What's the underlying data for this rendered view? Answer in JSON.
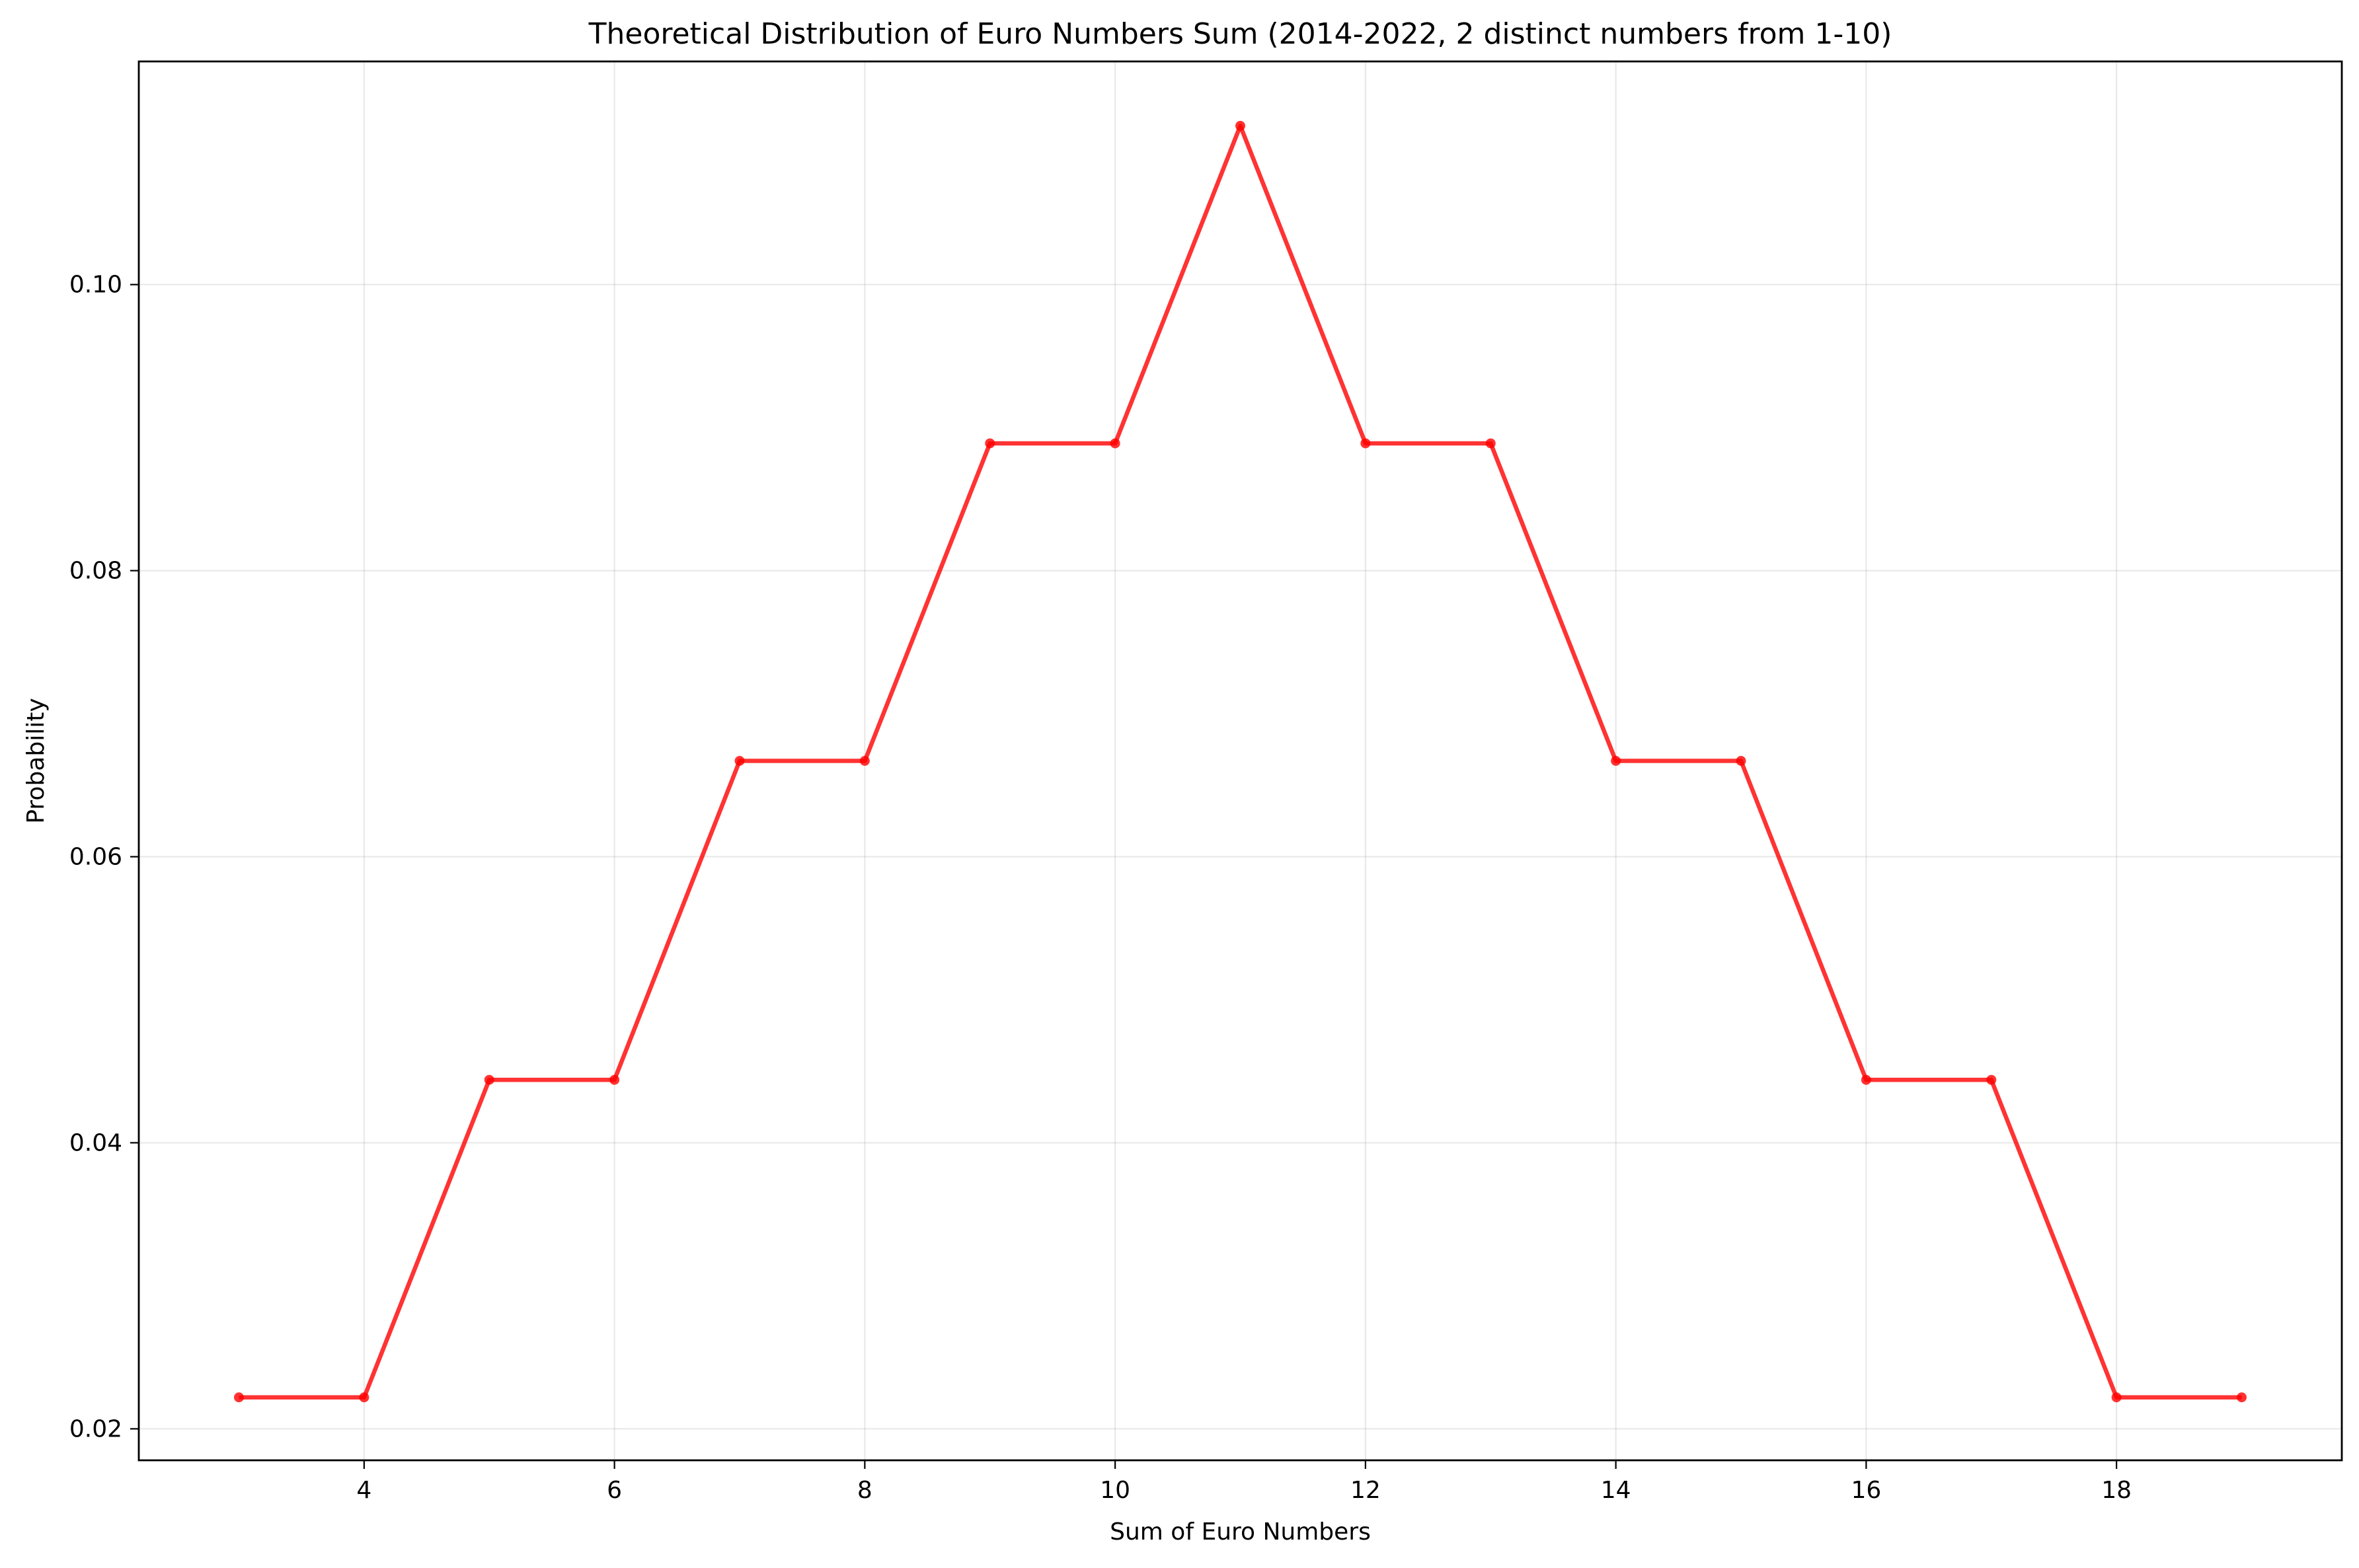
{
  "chart_data": {
    "type": "line",
    "title": "Theoretical Distribution of Euro Numbers Sum (2014-2022, 2 distinct numbers from 1-10)",
    "xlabel": "Sum of Euro Numbers",
    "ylabel": "Probability",
    "xlim": [
      2.2,
      19.8
    ],
    "ylim": [
      0.0178,
      0.1156
    ],
    "xticks": [
      4,
      6,
      8,
      10,
      12,
      14,
      16,
      18
    ],
    "xtick_labels": [
      "4",
      "6",
      "8",
      "10",
      "12",
      "14",
      "16",
      "18"
    ],
    "yticks": [
      0.02,
      0.04,
      0.06,
      0.08,
      0.1
    ],
    "ytick_labels": [
      "0.02",
      "0.04",
      "0.06",
      "0.08",
      "0.10"
    ],
    "grid": true,
    "series": [
      {
        "color": "#ff0000",
        "marker": "circle",
        "x": [
          3,
          4,
          5,
          6,
          7,
          8,
          9,
          10,
          11,
          12,
          13,
          14,
          15,
          16,
          17,
          18,
          19
        ],
        "y": [
          0.0222,
          0.0222,
          0.0444,
          0.0444,
          0.0667,
          0.0667,
          0.0889,
          0.0889,
          0.1111,
          0.0889,
          0.0889,
          0.0667,
          0.0667,
          0.0444,
          0.0444,
          0.0222,
          0.0222
        ]
      }
    ]
  }
}
